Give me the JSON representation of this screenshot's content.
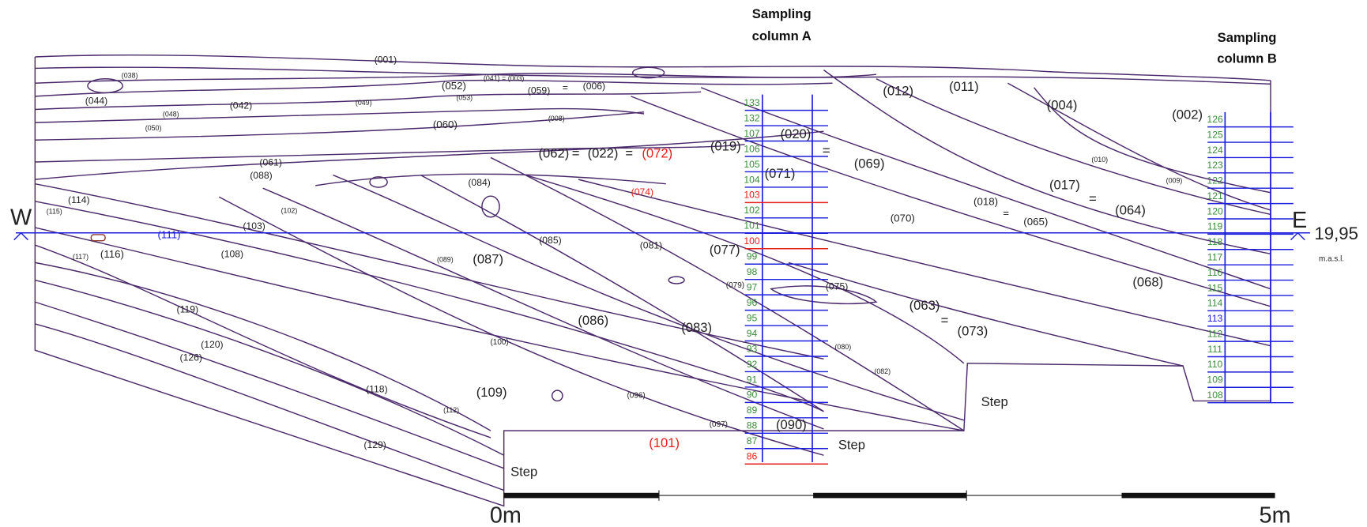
{
  "header": {
    "column_a": [
      "Sampling",
      "column A"
    ],
    "column_b": [
      "Sampling",
      "column B"
    ]
  },
  "orientation": {
    "west": "W",
    "east": "E",
    "elevation": "19,95",
    "elevation_unit": "m.a.s.l."
  },
  "scale": {
    "start": "0m",
    "end": "5m"
  },
  "steps": [
    "Step",
    "Step",
    "Step"
  ],
  "column_a": {
    "samples": [
      {
        "label": "133",
        "color": "#3c8c3c"
      },
      {
        "label": "132",
        "color": "#3c8c3c"
      },
      {
        "label": "107",
        "color": "#3c8c3c"
      },
      {
        "label": "106",
        "color": "#3c8c3c"
      },
      {
        "label": "105",
        "color": "#3c8c3c"
      },
      {
        "label": "104",
        "color": "#3c8c3c"
      },
      {
        "label": "103",
        "color": "#e8201b"
      },
      {
        "label": "102",
        "color": "#3c8c3c"
      },
      {
        "label": "101",
        "color": "#3c8c3c"
      },
      {
        "label": "100",
        "color": "#e8201b"
      },
      {
        "label": "99",
        "color": "#3c8c3c"
      },
      {
        "label": "98",
        "color": "#3c8c3c"
      },
      {
        "label": "97",
        "color": "#3c8c3c"
      },
      {
        "label": "96",
        "color": "#3c8c3c"
      },
      {
        "label": "95",
        "color": "#3c8c3c"
      },
      {
        "label": "94",
        "color": "#3c8c3c"
      },
      {
        "label": "93",
        "color": "#3c8c3c"
      },
      {
        "label": "92",
        "color": "#3c8c3c"
      },
      {
        "label": "91",
        "color": "#3c8c3c"
      },
      {
        "label": "90",
        "color": "#3c8c3c"
      },
      {
        "label": "89",
        "color": "#3c8c3c"
      },
      {
        "label": "88",
        "color": "#3c8c3c"
      },
      {
        "label": "87",
        "color": "#3c8c3c"
      },
      {
        "label": "86",
        "color": "#e8201b"
      }
    ]
  },
  "column_b": {
    "samples": [
      {
        "label": "126",
        "color": "#3c8c3c"
      },
      {
        "label": "125",
        "color": "#3c8c3c"
      },
      {
        "label": "124",
        "color": "#3c8c3c"
      },
      {
        "label": "123",
        "color": "#3c8c3c"
      },
      {
        "label": "122",
        "color": "#3c8c3c"
      },
      {
        "label": "121",
        "color": "#3c8c3c"
      },
      {
        "label": "120",
        "color": "#3c8c3c"
      },
      {
        "label": "119",
        "color": "#3c8c3c"
      },
      {
        "label": "118",
        "color": "#3c8c3c"
      },
      {
        "label": "117",
        "color": "#3c8c3c"
      },
      {
        "label": "116",
        "color": "#3c8c3c"
      },
      {
        "label": "115",
        "color": "#3c8c3c"
      },
      {
        "label": "114",
        "color": "#3c8c3c"
      },
      {
        "label": "113",
        "color": "#1c1cdc"
      },
      {
        "label": "112",
        "color": "#3c8c3c"
      },
      {
        "label": "111",
        "color": "#3c8c3c"
      },
      {
        "label": "110",
        "color": "#3c8c3c"
      },
      {
        "label": "109",
        "color": "#3c8c3c"
      },
      {
        "label": "108",
        "color": "#3c8c3c"
      }
    ]
  },
  "layers": [
    {
      "label": "(001)"
    },
    {
      "label": "(038)"
    },
    {
      "label": "(044)"
    },
    {
      "label": "(042)"
    },
    {
      "label": "(048)"
    },
    {
      "label": "(050)"
    },
    {
      "label": "(049)"
    },
    {
      "label": "(052)"
    },
    {
      "label": "(041) = (003)"
    },
    {
      "label": "(053)"
    },
    {
      "label": "(059)"
    },
    {
      "label": "="
    },
    {
      "label": "(006)"
    },
    {
      "label": "(008)"
    },
    {
      "label": "(060)"
    },
    {
      "label": "(012)"
    },
    {
      "label": "(011)"
    },
    {
      "label": "(004)"
    },
    {
      "label": "(002)"
    },
    {
      "label": "(020)"
    },
    {
      "label": "(019)"
    },
    {
      "label": "(062)"
    },
    {
      "label": "="
    },
    {
      "label": "(022)"
    },
    {
      "label": "="
    },
    {
      "label": "(072)",
      "color": "#e8201b"
    },
    {
      "label": "="
    },
    {
      "label": "(069)"
    },
    {
      "label": "(071)"
    },
    {
      "label": "(010)"
    },
    {
      "label": "(017)"
    },
    {
      "label": "(009)"
    },
    {
      "label": "="
    },
    {
      "label": "(064)"
    },
    {
      "label": "(018)"
    },
    {
      "label": "="
    },
    {
      "label": "(065)"
    },
    {
      "label": "(070)"
    },
    {
      "label": "(061)"
    },
    {
      "label": "(088)"
    },
    {
      "label": "(084)"
    },
    {
      "label": "(074)",
      "color": "#e8201b"
    },
    {
      "label": "(114)"
    },
    {
      "label": "(115)"
    },
    {
      "label": "(102)"
    },
    {
      "label": "(111)",
      "color": "#1c1cdc"
    },
    {
      "label": "(103)"
    },
    {
      "label": "(117)"
    },
    {
      "label": "(116)"
    },
    {
      "label": "(108)"
    },
    {
      "label": "(089)"
    },
    {
      "label": "(087)"
    },
    {
      "label": "(085)"
    },
    {
      "label": "(081)"
    },
    {
      "label": "(077)"
    },
    {
      "label": "(079)"
    },
    {
      "label": "(075)"
    },
    {
      "label": "(068)"
    },
    {
      "label": "(119)"
    },
    {
      "label": "(086)"
    },
    {
      "label": "(083)"
    },
    {
      "label": "(063)"
    },
    {
      "label": "="
    },
    {
      "label": "(073)"
    },
    {
      "label": "(120)"
    },
    {
      "label": "(126)"
    },
    {
      "label": "(100)"
    },
    {
      "label": "(080)"
    },
    {
      "label": "(082)"
    },
    {
      "label": "(118)"
    },
    {
      "label": "(109)"
    },
    {
      "label": "(096)"
    },
    {
      "label": "(112)"
    },
    {
      "label": "(097)"
    },
    {
      "label": "(090)"
    },
    {
      "label": "(129)"
    },
    {
      "label": "(101)",
      "color": "#e8201b"
    }
  ]
}
